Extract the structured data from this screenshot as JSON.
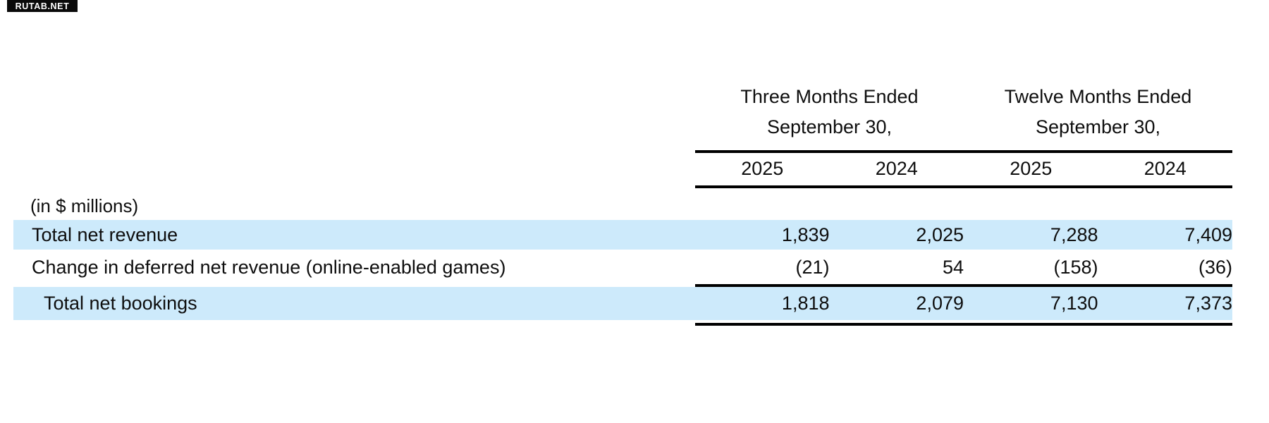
{
  "watermark": {
    "label": "RUTAB.NET",
    "background": "#0a0a0a",
    "color": "#ffffff"
  },
  "table": {
    "units_note": "(in $ millions)",
    "column_groups": [
      {
        "title_line1": "Three Months Ended",
        "title_line2": "September 30,"
      },
      {
        "title_line1": "Twelve Months Ended",
        "title_line2": "September 30,"
      }
    ],
    "year_headers": [
      "2025",
      "2024",
      "2025",
      "2024"
    ],
    "rows": [
      {
        "label": "Total net revenue",
        "highlighted": true,
        "values": [
          "1,839",
          "2,025",
          "7,288",
          "7,409"
        ]
      },
      {
        "label": "Change in deferred net revenue (online-enabled games)",
        "highlighted": false,
        "values": [
          "(21)",
          "54",
          "(158)",
          "(36)"
        ]
      },
      {
        "label": "Total net bookings",
        "highlighted": true,
        "values": [
          "1,818",
          "2,079",
          "7,130",
          "7,373"
        ]
      }
    ],
    "highlight_color": "#cdeafb",
    "rule_color": "#000000"
  },
  "chart_data": {
    "type": "table",
    "title": "",
    "columns": [
      "Three Months Ended September 30, 2025",
      "Three Months Ended September 30, 2024",
      "Twelve Months Ended September 30, 2025",
      "Twelve Months Ended September 30, 2024"
    ],
    "rows": [
      {
        "label": "Total net revenue",
        "values": [
          1839,
          2025,
          7288,
          7409
        ]
      },
      {
        "label": "Change in deferred net revenue (online-enabled games)",
        "values": [
          -21,
          54,
          -158,
          -36
        ]
      },
      {
        "label": "Total net bookings",
        "values": [
          1818,
          2079,
          7130,
          7373
        ]
      }
    ],
    "units": "$ millions"
  }
}
